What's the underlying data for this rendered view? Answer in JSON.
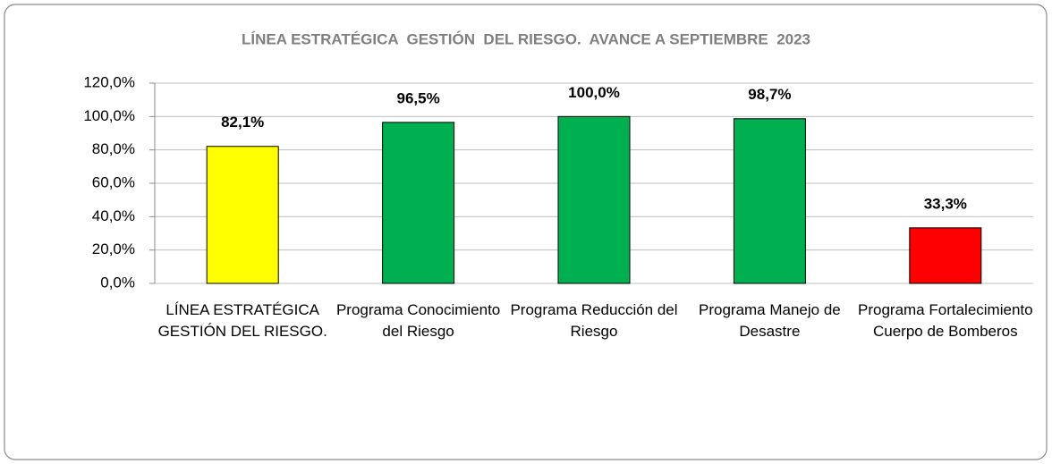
{
  "chart_data": {
    "type": "bar",
    "title": "LÍNEA ESTRATÉGICA  GESTIÓN  DEL RIESGO.  AVANCE A SEPTIEMBRE  2023",
    "categories": [
      "LÍNEA ESTRATÉGICA GESTIÓN DEL RIESGO.",
      "Programa Conocimiento del Riesgo",
      "Programa Reducción del Riesgo",
      "Programa Manejo de Desastre",
      "Programa Fortalecimiento Cuerpo de Bomberos"
    ],
    "values": [
      82.1,
      96.5,
      100.0,
      98.7,
      33.3
    ],
    "value_labels": [
      "82,1%",
      "96,5%",
      "100,0%",
      "98,7%",
      "33,3%"
    ],
    "colors": [
      "#ffff00",
      "#00b050",
      "#00b050",
      "#00b050",
      "#ff0000"
    ],
    "ylim": [
      0,
      120
    ],
    "yticks": [
      {
        "value": 0,
        "label": "0,0%"
      },
      {
        "value": 20,
        "label": "20,0%"
      },
      {
        "value": 40,
        "label": "40,0%"
      },
      {
        "value": 60,
        "label": "60,0%"
      },
      {
        "value": 80,
        "label": "80,0%"
      },
      {
        "value": 100,
        "label": "100,0%"
      },
      {
        "value": 120,
        "label": "120,0%"
      }
    ],
    "grid": true
  }
}
